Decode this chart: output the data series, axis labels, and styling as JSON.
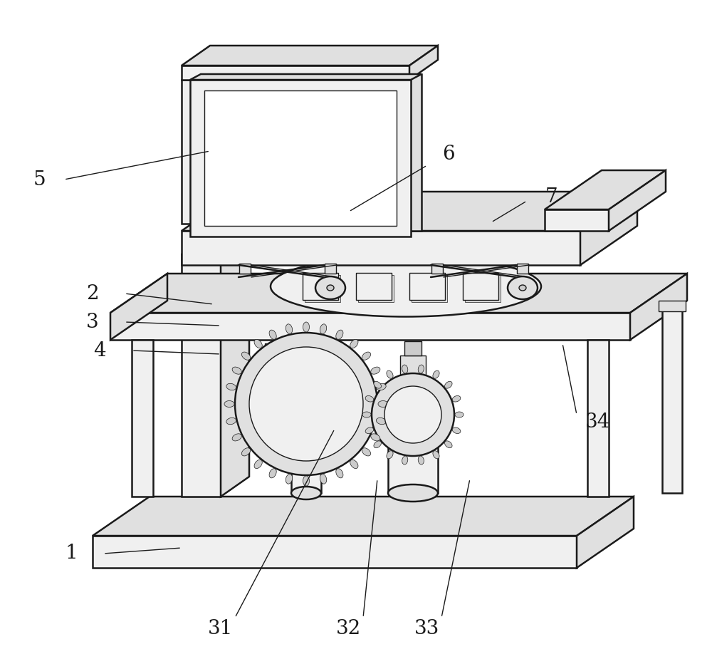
{
  "bg_color": "#ffffff",
  "lc": "#1a1a1a",
  "lw_main": 1.8,
  "lw_thin": 1.0,
  "lw_leader": 1.0,
  "label_fs": 20,
  "label_color": "#1a1a1a",
  "fc_white": "#ffffff",
  "fc_light": "#f0f0f0",
  "fc_mid": "#e0e0e0",
  "fc_dark": "#cccccc"
}
